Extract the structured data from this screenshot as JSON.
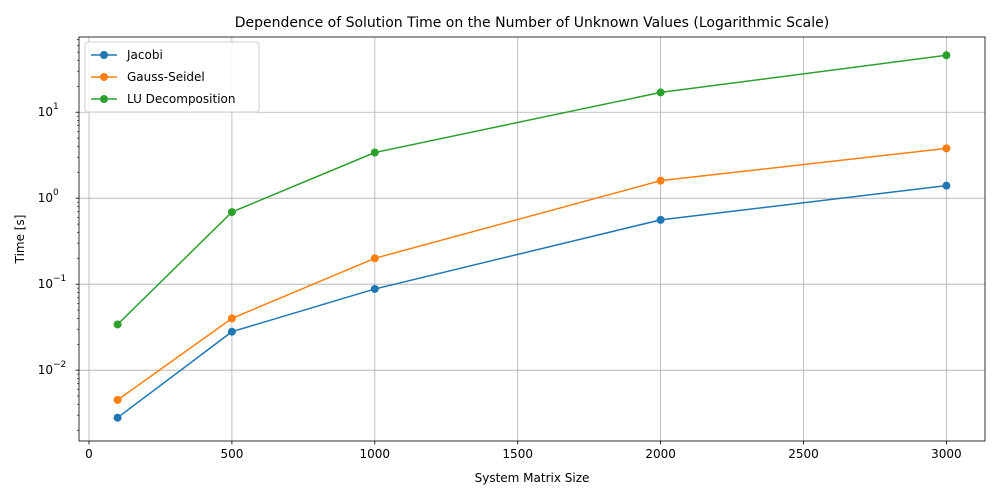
{
  "chart_data": {
    "type": "line",
    "title": "Dependence of Solution Time on the Number of Unknown Values (Logarithmic Scale)",
    "xlabel": "System Matrix Size",
    "ylabel": "Time [s]",
    "xlim": [
      -35,
      3135
    ],
    "ylim": [
      0.0015,
      75
    ],
    "yscale": "log",
    "grid": true,
    "legend_position": "top-left",
    "x_ticks": [
      0,
      500,
      1000,
      1500,
      2000,
      2500,
      3000
    ],
    "x_tick_labels": [
      "0",
      "500",
      "1000",
      "1500",
      "2000",
      "2500",
      "3000"
    ],
    "y_ticks": [
      0.01,
      0.1,
      1,
      10
    ],
    "y_tick_labels": [
      {
        "base": "10",
        "exp": "−2"
      },
      {
        "base": "10",
        "exp": "−1"
      },
      {
        "base": "10",
        "exp": "0"
      },
      {
        "base": "10",
        "exp": "1"
      }
    ],
    "x": [
      100,
      500,
      1000,
      2000,
      3000
    ],
    "series": [
      {
        "name": "Jacobi",
        "color": "#1f77b4",
        "values": [
          0.0028,
          0.028,
          0.088,
          0.56,
          1.4
        ]
      },
      {
        "name": "Gauss-Seidel",
        "color": "#ff7f0e",
        "values": [
          0.0045,
          0.04,
          0.2,
          1.6,
          3.8
        ]
      },
      {
        "name": "LU Decomposition",
        "color": "#2ca02c",
        "values": [
          0.034,
          0.69,
          3.4,
          17,
          46
        ]
      }
    ]
  }
}
